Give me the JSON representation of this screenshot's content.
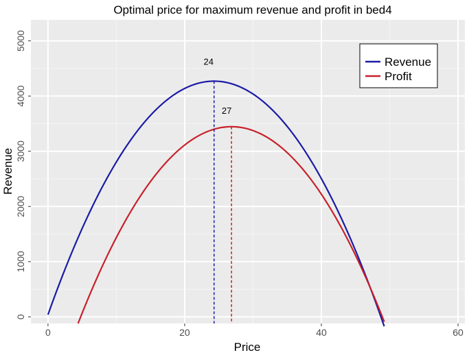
{
  "chart_data": {
    "type": "line",
    "title": "Optimal price for maximum revenue and profit in bed4",
    "xlabel": "Price",
    "ylabel": "Revenue",
    "xlim": [
      -2.5,
      61
    ],
    "ylim": [
      -120,
      5380
    ],
    "x_ticks": [
      0,
      20,
      40,
      60
    ],
    "y_ticks": [
      0,
      1000,
      2000,
      3000,
      4000,
      5000
    ],
    "x_tick_labels": [
      "0",
      "20",
      "40",
      "60"
    ],
    "y_tick_labels": [
      "0",
      "1000",
      "2000",
      "3000",
      "4000",
      "5000"
    ],
    "grid": true,
    "legend_position": "top-right",
    "series": [
      {
        "name": "Revenue",
        "color": "#1a1aa6",
        "x": [
          0,
          24.3,
          49.2
        ],
        "y": [
          40,
          4270,
          0
        ],
        "peak": {
          "x": 24.3,
          "y": 4270,
          "label": "24"
        }
      },
      {
        "name": "Profit",
        "color": "#c8202a",
        "x": [
          4.4,
          26.85,
          49.2
        ],
        "y": [
          -120,
          3445,
          -120
        ],
        "peak": {
          "x": 26.85,
          "y": 3445,
          "label": "27"
        }
      }
    ]
  }
}
